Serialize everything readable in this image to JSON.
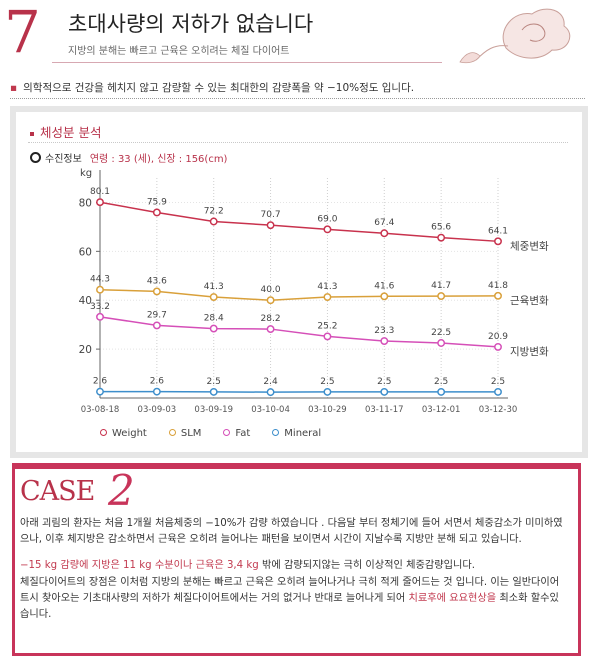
{
  "header": {
    "number": "7",
    "title": "초대사량의 저하가 없습니다",
    "subtitle": "지방의 분해는 빠르고 근육은 오히려는 체질 다이어트"
  },
  "intro": "의학적으로 건강을 헤치지 않고 감량할 수 있는 최대한의 감량폭을 약 −10%정도 입니다.",
  "panel": {
    "title": "체성분 분석",
    "subject_label": "수진정보",
    "subject_info": "연령 : 33 (세),  신장 : 156(cm)"
  },
  "chart_data": {
    "type": "line",
    "x": [
      "03-08-18",
      "03-09-03",
      "03-09-19",
      "03-10-04",
      "03-10-29",
      "03-11-17",
      "03-12-01",
      "03-12-30"
    ],
    "ylabel": "kg",
    "ylim": [
      0,
      90
    ],
    "yticks": [
      20,
      40,
      60,
      80
    ],
    "grid": true,
    "legend_position": "bottom",
    "series": [
      {
        "name": "Weight",
        "color": "#c8324d",
        "label": "체중변화",
        "values": [
          80.1,
          75.9,
          72.2,
          70.7,
          69.0,
          67.4,
          65.6,
          64.1
        ]
      },
      {
        "name": "SLM",
        "color": "#d9a03a",
        "label": "근육변화",
        "values": [
          44.3,
          43.6,
          41.3,
          40.0,
          41.3,
          41.6,
          41.7,
          41.8
        ]
      },
      {
        "name": "Fat",
        "color": "#d54fb8",
        "label": "지방변화",
        "values": [
          33.2,
          29.7,
          28.4,
          28.2,
          25.2,
          23.3,
          22.5,
          20.9
        ]
      },
      {
        "name": "Mineral",
        "color": "#3d8ecb",
        "label": "",
        "values": [
          2.6,
          2.6,
          2.5,
          2.4,
          2.5,
          2.5,
          2.5,
          2.5
        ]
      }
    ],
    "labels": {
      "Weight": [
        "80.1",
        "75.9",
        "72.2",
        "70.7",
        "69.0",
        "67.4",
        "65.6",
        "64.1"
      ],
      "SLM": [
        "44.3",
        "43.6",
        "41.3",
        "40.0",
        "41.3",
        "41.6",
        "41.7",
        "41.8"
      ],
      "Fat": [
        "33.2",
        "29.7",
        "28.4",
        "28.2",
        "25.2",
        "23.3",
        "22.5",
        "20.9"
      ],
      "Mineral": [
        "2.6",
        "2.6",
        "2.5",
        "2.4",
        "2.5",
        "2.5",
        "2.5",
        "2.5"
      ]
    },
    "tick_labels": [
      "20",
      "40",
      "60",
      "80"
    ]
  },
  "case": {
    "label": "CASE",
    "number": "2",
    "p1": "아래 괴림의 환자는 처음 1개월 처음체중의 −10%가 감량 하였습니다 . 다음달 부터 정체기에 들어 서면서 체중감소가 미미하였으나, 이후 체지방은 감소하면서 근육은 오히려 늘어나는 패턴을 보이면서 시간이 지날수록 지방만 분해 되고 있습니다.",
    "p2_highlight": "−15 kg  감량에 지방은 11 kg 수분이나 근육은 3,4 kg",
    "p2_rest": " 밖에 감량되지않는 극히 이상적인 체중감량입니다.",
    "p3": "체질다이어트의 장점은 이처럼 지방의 분해는 빠르고 근육은 오히려 늘어나거나 극히 적게 줄어드는 것 입니다. 이는 일반다이어트시 찾아오는 기초대사량의 저하가 체질다이어트에서는 거의 없거나 반대로 늘어나게 되어 ",
    "p3_highlight": "치료후에 요요현상을",
    "p3_end": " 최소화 할수있습니다."
  }
}
